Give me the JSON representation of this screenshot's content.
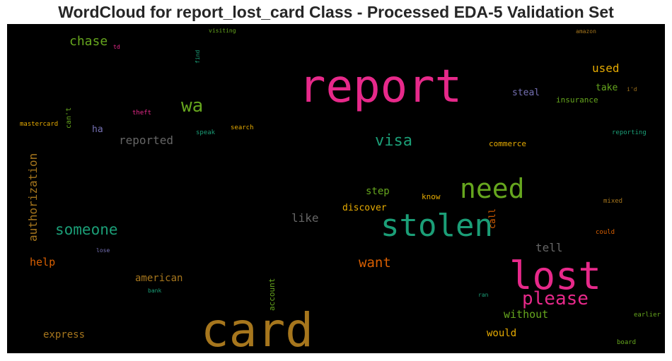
{
  "chart_data": {
    "type": "wordcloud",
    "title": "WordCloud for report_lost_card Class - Processed EDA-5 Validation Set",
    "words": [
      {
        "text": "report",
        "color": "#e7298a"
      },
      {
        "text": "card",
        "color": "#a6761d"
      },
      {
        "text": "lost",
        "color": "#e7298a"
      },
      {
        "text": "stolen",
        "color": "#1b9e77"
      },
      {
        "text": "need",
        "color": "#66a61e"
      },
      {
        "text": "please",
        "color": "#e7298a"
      },
      {
        "text": "wa",
        "color": "#66a61e"
      },
      {
        "text": "visa",
        "color": "#1b9e77"
      },
      {
        "text": "someone",
        "color": "#1b9e77"
      },
      {
        "text": "chase",
        "color": "#66a61e"
      },
      {
        "text": "want",
        "color": "#d95f02"
      },
      {
        "text": "authorization",
        "color": "#a6761d"
      },
      {
        "text": "used",
        "color": "#e6ab02"
      },
      {
        "text": "reported",
        "color": "#666666"
      },
      {
        "text": "like",
        "color": "#666666"
      },
      {
        "text": "tell",
        "color": "#666666"
      },
      {
        "text": "without",
        "color": "#66a61e"
      },
      {
        "text": "help",
        "color": "#d95f02"
      },
      {
        "text": "american",
        "color": "#a6761d"
      },
      {
        "text": "express",
        "color": "#a6761d"
      },
      {
        "text": "would",
        "color": "#e6ab02"
      },
      {
        "text": "step",
        "color": "#66a61e"
      },
      {
        "text": "discover",
        "color": "#e6ab02"
      },
      {
        "text": "take",
        "color": "#66a61e"
      },
      {
        "text": "steal",
        "color": "#7570b3"
      },
      {
        "text": "ha",
        "color": "#7570b3"
      },
      {
        "text": "call",
        "color": "#d95f02"
      },
      {
        "text": "account",
        "color": "#66a61e"
      },
      {
        "text": "insurance",
        "color": "#66a61e"
      },
      {
        "text": "commerce",
        "color": "#e6ab02"
      },
      {
        "text": "know",
        "color": "#e6ab02"
      },
      {
        "text": "can't",
        "color": "#66a61e"
      },
      {
        "text": "mastercard",
        "color": "#e6ab02"
      },
      {
        "text": "theft",
        "color": "#e7298a"
      },
      {
        "text": "speak",
        "color": "#1b9e77"
      },
      {
        "text": "search",
        "color": "#e6ab02"
      },
      {
        "text": "reporting",
        "color": "#1b9e77"
      },
      {
        "text": "find",
        "color": "#1b9e77"
      },
      {
        "text": "visiting",
        "color": "#66a61e"
      },
      {
        "text": "td",
        "color": "#e7298a"
      },
      {
        "text": "amazon",
        "color": "#a6761d"
      },
      {
        "text": "i'd",
        "color": "#a6761d"
      },
      {
        "text": "mixed",
        "color": "#a6761d"
      },
      {
        "text": "could",
        "color": "#d95f02"
      },
      {
        "text": "lose",
        "color": "#7570b3"
      },
      {
        "text": "bank",
        "color": "#1b9e77"
      },
      {
        "text": "ran",
        "color": "#1b9e77"
      },
      {
        "text": "earlier",
        "color": "#66a61e"
      },
      {
        "text": "board",
        "color": "#66a61e"
      }
    ]
  }
}
